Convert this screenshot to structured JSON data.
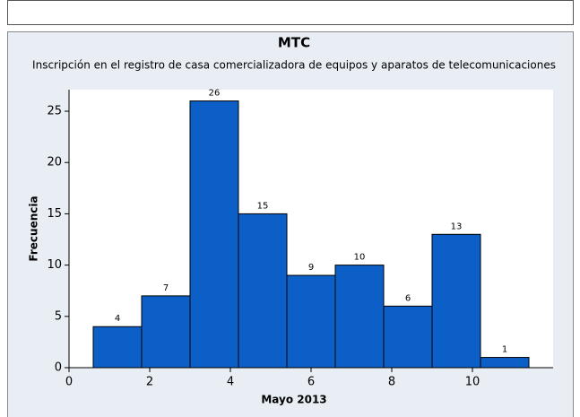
{
  "chart_data": {
    "type": "histogram",
    "title": "MTC",
    "subtitle": "Inscripción en el registro de casa comercializadora de equipos y aparatos de telecomunicaciones",
    "x_label": "Mayo 2013",
    "y_label": "Frecuencia",
    "bins": [
      0.6,
      1.8,
      3.0,
      4.2,
      5.4,
      6.6,
      7.8,
      9.0,
      10.2,
      11.4
    ],
    "values": [
      4,
      7,
      26,
      15,
      9,
      10,
      6,
      13,
      1
    ],
    "color": "#0c5fc6",
    "xlim": [
      0,
      12
    ],
    "xticks": [
      0,
      2,
      4,
      6,
      8,
      10
    ],
    "ylim": [
      0,
      27.1
    ],
    "yticks": [
      0,
      5,
      10,
      15,
      20,
      25
    ]
  }
}
